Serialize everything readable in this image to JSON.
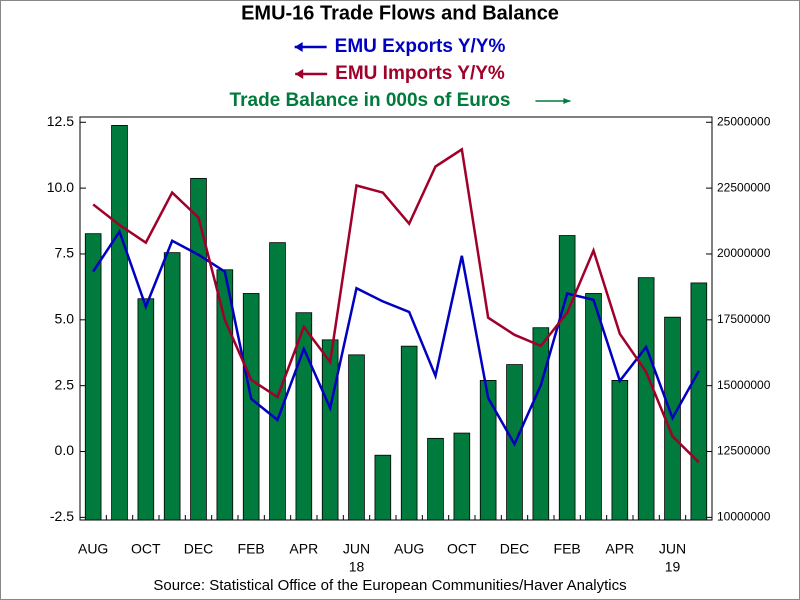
{
  "chart_data": {
    "type": "combo",
    "title": "EMU-16 Trade Flows and Balance",
    "source": "Source:  Statistical Office of the European Communities/Haver Analytics",
    "categories": [
      "AUG",
      null,
      "OCT",
      null,
      "DEC",
      null,
      "FEB",
      null,
      "APR",
      null,
      "JUN",
      null,
      "AUG",
      null,
      "OCT",
      null,
      "DEC",
      null,
      "FEB",
      null,
      "APR",
      null,
      "JUN",
      null
    ],
    "category_years": [
      null,
      null,
      null,
      null,
      null,
      null,
      null,
      null,
      null,
      null,
      "18",
      null,
      null,
      null,
      null,
      null,
      null,
      null,
      null,
      null,
      null,
      null,
      "19",
      null
    ],
    "ylim": [
      -2.6,
      12.7
    ],
    "yticks": [
      {
        "value": -2.5,
        "label": "-2.5"
      },
      {
        "value": 0,
        "label": "0.0"
      },
      {
        "value": 2.5,
        "label": "2.5"
      },
      {
        "value": 5,
        "label": "5.0"
      },
      {
        "value": 7.5,
        "label": "7.5"
      },
      {
        "value": 10,
        "label": "10.0"
      },
      {
        "value": 12.5,
        "label": "12.5"
      }
    ],
    "y2lim": [
      9900000,
      25200000
    ],
    "y2ticks": [
      10000000,
      12500000,
      15000000,
      17500000,
      20000000,
      22500000,
      25000000
    ],
    "series": [
      {
        "name": "Trade Balance in 000s of Euros",
        "type": "bar",
        "axis": "y2",
        "color": "#007a3d",
        "values": [
          20770000,
          24880000,
          18300000,
          20050000,
          22870000,
          19400000,
          18500000,
          20430000,
          17770000,
          16740000,
          16170000,
          12360000,
          16500000,
          13000000,
          13200000,
          15200000,
          15800000,
          17200000,
          20700000,
          18500000,
          15200000,
          19100000,
          17600000,
          18900000
        ]
      },
      {
        "name": "EMU Exports Y/Y%",
        "type": "line",
        "axis": "y",
        "color": "#0000c0",
        "values": [
          6.83,
          8.35,
          5.5,
          8.0,
          7.47,
          6.83,
          2.0,
          1.2,
          3.9,
          1.65,
          6.2,
          5.7,
          5.3,
          2.87,
          7.43,
          2.03,
          0.28,
          2.52,
          6.0,
          5.76,
          2.68,
          3.97,
          1.27,
          3.06
        ]
      },
      {
        "name": "EMU Imports Y/Y%",
        "type": "line",
        "axis": "y",
        "color": "#a0002a",
        "values": [
          9.38,
          8.6,
          7.93,
          9.83,
          8.88,
          5.0,
          2.72,
          2.07,
          4.73,
          3.4,
          10.1,
          9.83,
          8.65,
          10.82,
          11.47,
          5.08,
          4.43,
          4.01,
          5.27,
          7.63,
          4.47,
          3.02,
          0.58,
          -0.41
        ]
      }
    ]
  }
}
